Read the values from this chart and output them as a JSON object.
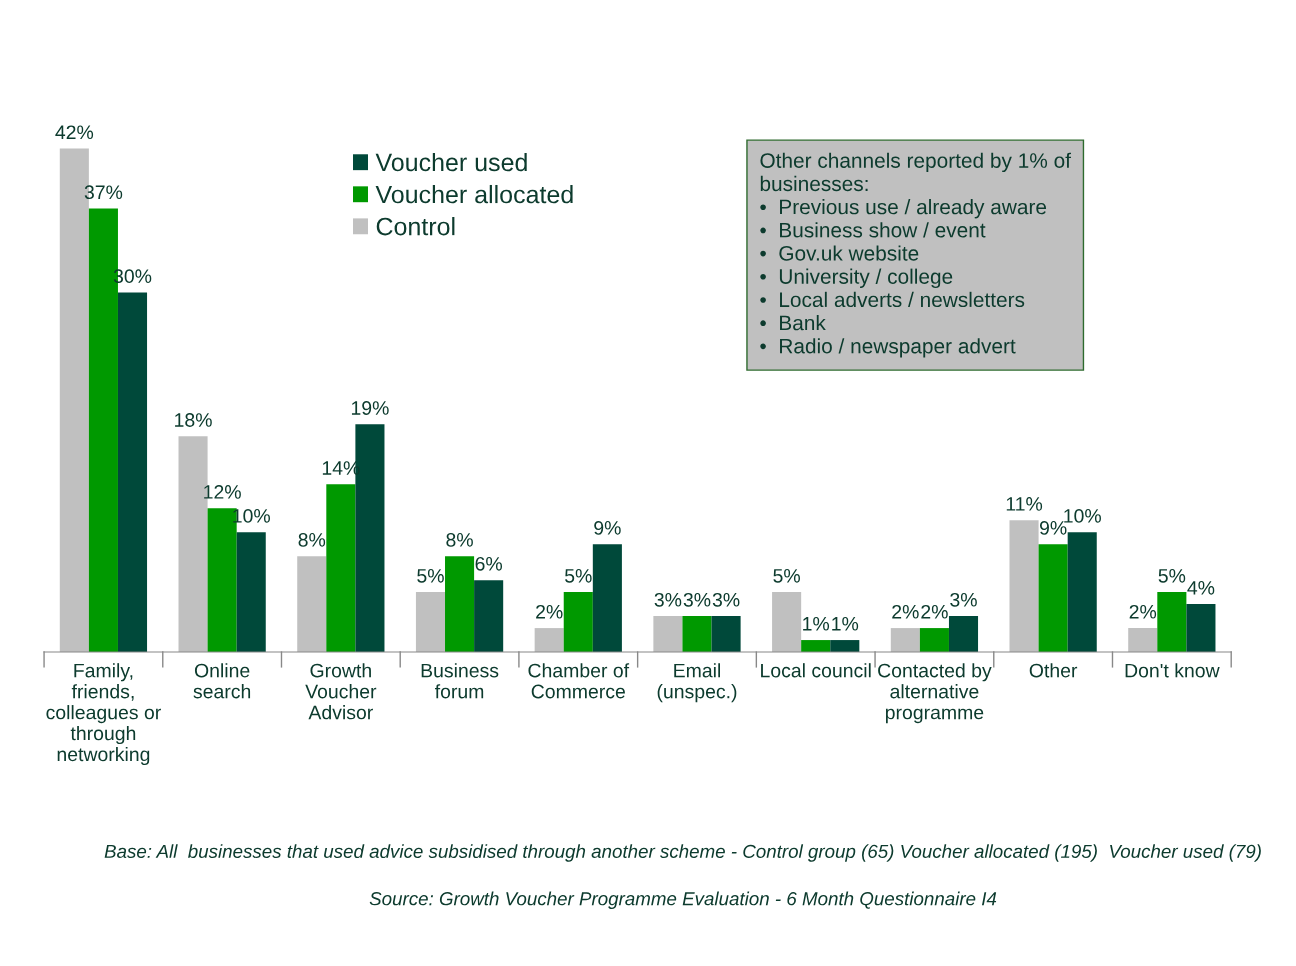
{
  "chart_data": {
    "type": "bar",
    "categories": [
      "Family,\nfriends,\ncolleagues or\nthrough\nnetworking",
      "Online\nsearch",
      "Growth\nVoucher\nAdvisor",
      "Business\nforum",
      "Chamber of\nCommerce",
      "Email\n(unspec.)",
      "Local council",
      "Contacted by\nalternative\nprogramme",
      "Other",
      "Don't know"
    ],
    "series": [
      {
        "name": "Control",
        "color": "#c0c0c0",
        "values": [
          42,
          18,
          8,
          5,
          2,
          3,
          5,
          2,
          11,
          2
        ],
        "value_labels": [
          "42%",
          "18%",
          "8%",
          "5%",
          "2%",
          "3%",
          "5%",
          "2%",
          "11%",
          "2%"
        ]
      },
      {
        "name": "Voucher allocated",
        "color": "#009900",
        "values": [
          37,
          12,
          14,
          8,
          5,
          3,
          1,
          2,
          9,
          5
        ],
        "value_labels": [
          "37%",
          "12%",
          "14%",
          "8%",
          "5%",
          "3%",
          "1%",
          "2%",
          "9%",
          "5%"
        ]
      },
      {
        "name": "Voucher used",
        "color": "#00493a",
        "values": [
          30,
          10,
          19,
          6,
          9,
          3,
          1,
          3,
          10,
          4
        ],
        "value_labels": [
          "30%",
          "10%",
          "19%",
          "6%",
          "9%",
          "3%",
          "1%",
          "3%",
          "10%",
          "4%"
        ]
      }
    ],
    "legend": "top left",
    "annotations": [
      "Other channels reported by 1% of\nbusinesses:\n•  Previous use / already aware\n•  Business show / event\n•  Gov.uk website\n•  University / college\n•  Local adverts / newsletters\n•  Bank\n•  Radio / newspaper advert",
      "Base: All  businesses that used advice subsidised through another scheme - Control group (65) Voucher allocated (195)  Voucher used (79)",
      "Source: Growth Voucher Programme Evaluation - 6 Month Questionnaire I4"
    ]
  }
}
